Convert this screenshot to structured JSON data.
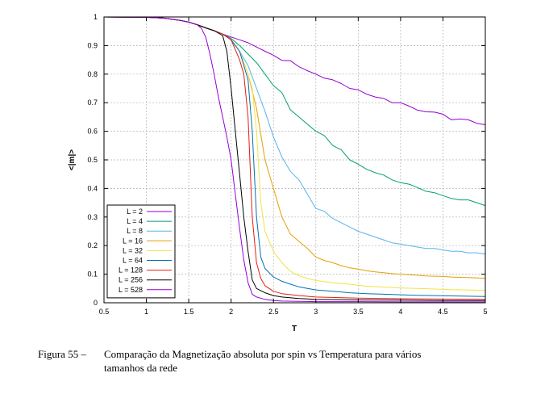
{
  "caption": {
    "number": "Figura 55 –",
    "line1": "Comparação da Magnetização absoluta por spin vs Temperatura para vários",
    "line2": "tamanhos da rede"
  },
  "chart_data": {
    "type": "line",
    "xlabel": "T",
    "ylabel": "<|m|>",
    "xlim": [
      0.5,
      5
    ],
    "ylim": [
      0,
      1
    ],
    "xticks": [
      "0.5",
      "1",
      "1.5",
      "2",
      "2.5",
      "3",
      "3.5",
      "4",
      "4.5",
      "5"
    ],
    "yticks": [
      "0",
      "0.1",
      "0.2",
      "0.3",
      "0.4",
      "0.5",
      "0.6",
      "0.7",
      "0.8",
      "0.9",
      "1"
    ],
    "grid": true,
    "legend_position": "bottom-left",
    "series": [
      {
        "name": "L = 2",
        "color": "#9400d3",
        "x": [
          0.5,
          1.0,
          1.2,
          1.4,
          1.5,
          1.6,
          1.7,
          1.8,
          1.9,
          2.0,
          2.1,
          2.2,
          2.3,
          2.4,
          2.5,
          2.6,
          2.7,
          2.8,
          2.9,
          3.0,
          3.1,
          3.2,
          3.3,
          3.4,
          3.5,
          3.6,
          3.7,
          3.8,
          3.9,
          4.0,
          4.1,
          4.2,
          4.3,
          4.4,
          4.5,
          4.6,
          4.7,
          4.8,
          4.9,
          5.0
        ],
        "y": [
          1.0,
          0.999,
          0.996,
          0.988,
          0.982,
          0.973,
          0.962,
          0.952,
          0.94,
          0.93,
          0.92,
          0.91,
          0.895,
          0.88,
          0.866,
          0.848,
          0.847,
          0.826,
          0.812,
          0.8,
          0.786,
          0.78,
          0.767,
          0.75,
          0.745,
          0.73,
          0.72,
          0.715,
          0.7,
          0.7,
          0.688,
          0.674,
          0.668,
          0.667,
          0.66,
          0.64,
          0.643,
          0.64,
          0.628,
          0.623
        ]
      },
      {
        "name": "L = 4",
        "color": "#009e73",
        "x": [
          0.5,
          1.0,
          1.2,
          1.4,
          1.5,
          1.6,
          1.7,
          1.8,
          1.9,
          2.0,
          2.1,
          2.2,
          2.3,
          2.4,
          2.5,
          2.6,
          2.7,
          2.8,
          2.9,
          3.0,
          3.1,
          3.2,
          3.3,
          3.4,
          3.5,
          3.6,
          3.7,
          3.8,
          3.9,
          4.0,
          4.1,
          4.2,
          4.3,
          4.4,
          4.5,
          4.6,
          4.7,
          4.8,
          4.9,
          5.0
        ],
        "y": [
          1.0,
          0.999,
          0.996,
          0.988,
          0.982,
          0.973,
          0.962,
          0.952,
          0.94,
          0.925,
          0.9,
          0.87,
          0.84,
          0.8,
          0.76,
          0.735,
          0.675,
          0.65,
          0.625,
          0.6,
          0.585,
          0.55,
          0.535,
          0.5,
          0.485,
          0.467,
          0.455,
          0.447,
          0.43,
          0.42,
          0.415,
          0.403,
          0.39,
          0.385,
          0.375,
          0.365,
          0.36,
          0.36,
          0.35,
          0.34
        ]
      },
      {
        "name": "L = 8",
        "color": "#56b4e9",
        "x": [
          0.5,
          1.0,
          1.2,
          1.4,
          1.5,
          1.6,
          1.7,
          1.8,
          1.9,
          2.0,
          2.1,
          2.2,
          2.3,
          2.4,
          2.5,
          2.6,
          2.7,
          2.8,
          2.9,
          3.0,
          3.1,
          3.2,
          3.3,
          3.4,
          3.5,
          3.6,
          3.7,
          3.8,
          3.9,
          4.0,
          4.1,
          4.2,
          4.3,
          4.4,
          4.5,
          4.6,
          4.7,
          4.8,
          4.9,
          5.0
        ],
        "y": [
          1.0,
          0.999,
          0.996,
          0.988,
          0.982,
          0.973,
          0.962,
          0.952,
          0.94,
          0.92,
          0.88,
          0.83,
          0.75,
          0.67,
          0.58,
          0.51,
          0.46,
          0.43,
          0.38,
          0.33,
          0.32,
          0.295,
          0.28,
          0.265,
          0.25,
          0.24,
          0.23,
          0.22,
          0.21,
          0.205,
          0.2,
          0.195,
          0.19,
          0.19,
          0.185,
          0.18,
          0.18,
          0.175,
          0.175,
          0.17
        ]
      },
      {
        "name": "L = 16",
        "color": "#e69f00",
        "x": [
          0.5,
          1.0,
          1.2,
          1.4,
          1.5,
          1.6,
          1.7,
          1.8,
          1.9,
          2.0,
          2.1,
          2.2,
          2.3,
          2.4,
          2.5,
          2.6,
          2.7,
          2.8,
          2.9,
          3.0,
          3.1,
          3.2,
          3.3,
          3.4,
          3.5,
          3.6,
          3.7,
          3.8,
          3.9,
          4.0,
          4.1,
          4.2,
          4.3,
          4.4,
          4.5,
          4.6,
          4.7,
          4.8,
          4.9,
          5.0
        ],
        "y": [
          1.0,
          0.999,
          0.996,
          0.988,
          0.982,
          0.973,
          0.962,
          0.952,
          0.94,
          0.92,
          0.88,
          0.8,
          0.68,
          0.5,
          0.4,
          0.3,
          0.24,
          0.215,
          0.19,
          0.16,
          0.148,
          0.14,
          0.13,
          0.122,
          0.118,
          0.112,
          0.108,
          0.105,
          0.102,
          0.1,
          0.098,
          0.096,
          0.094,
          0.093,
          0.092,
          0.09,
          0.089,
          0.088,
          0.087,
          0.086
        ]
      },
      {
        "name": "L = 32",
        "color": "#f0e442",
        "x": [
          0.5,
          1.0,
          1.2,
          1.4,
          1.5,
          1.6,
          1.7,
          1.8,
          1.9,
          2.0,
          2.1,
          2.2,
          2.25,
          2.3,
          2.35,
          2.4,
          2.5,
          2.6,
          2.7,
          2.8,
          2.9,
          3.0,
          3.2,
          3.4,
          3.6,
          3.8,
          4.0,
          4.2,
          4.4,
          4.6,
          4.8,
          5.0
        ],
        "y": [
          1.0,
          0.999,
          0.996,
          0.988,
          0.982,
          0.973,
          0.962,
          0.952,
          0.94,
          0.92,
          0.88,
          0.8,
          0.75,
          0.6,
          0.35,
          0.25,
          0.18,
          0.14,
          0.11,
          0.095,
          0.085,
          0.078,
          0.07,
          0.065,
          0.058,
          0.055,
          0.052,
          0.05,
          0.048,
          0.046,
          0.045,
          0.043
        ]
      },
      {
        "name": "L = 64",
        "color": "#0072b2",
        "x": [
          0.5,
          1.0,
          1.2,
          1.4,
          1.5,
          1.6,
          1.7,
          1.8,
          1.9,
          2.0,
          2.1,
          2.2,
          2.25,
          2.3,
          2.35,
          2.4,
          2.5,
          2.6,
          2.7,
          2.8,
          2.9,
          3.0,
          3.2,
          3.4,
          3.6,
          3.8,
          4.0,
          4.2,
          4.4,
          4.6,
          4.8,
          5.0
        ],
        "y": [
          1.0,
          0.999,
          0.996,
          0.988,
          0.982,
          0.973,
          0.962,
          0.952,
          0.94,
          0.92,
          0.88,
          0.78,
          0.6,
          0.3,
          0.16,
          0.12,
          0.09,
          0.075,
          0.065,
          0.056,
          0.05,
          0.045,
          0.04,
          0.035,
          0.032,
          0.03,
          0.028,
          0.026,
          0.025,
          0.024,
          0.023,
          0.022
        ]
      },
      {
        "name": "L = 128",
        "color": "#e51e10",
        "x": [
          0.5,
          1.0,
          1.2,
          1.4,
          1.5,
          1.6,
          1.7,
          1.8,
          1.9,
          2.0,
          2.1,
          2.15,
          2.2,
          2.25,
          2.3,
          2.35,
          2.4,
          2.5,
          2.6,
          2.8,
          3.0,
          3.5,
          4.0,
          4.5,
          5.0
        ],
        "y": [
          1.0,
          0.999,
          0.996,
          0.988,
          0.982,
          0.973,
          0.962,
          0.952,
          0.94,
          0.92,
          0.85,
          0.8,
          0.65,
          0.3,
          0.14,
          0.085,
          0.06,
          0.04,
          0.032,
          0.025,
          0.02,
          0.016,
          0.014,
          0.013,
          0.012
        ]
      },
      {
        "name": "L = 256",
        "color": "#000000",
        "x": [
          0.5,
          1.0,
          1.2,
          1.4,
          1.5,
          1.6,
          1.7,
          1.8,
          1.9,
          1.95,
          2.0,
          2.05,
          2.1,
          2.15,
          2.2,
          2.25,
          2.3,
          2.4,
          2.5,
          2.6,
          2.8,
          3.0,
          3.5,
          4.0,
          4.5,
          5.0
        ],
        "y": [
          1.0,
          0.999,
          0.996,
          0.988,
          0.982,
          0.973,
          0.962,
          0.952,
          0.935,
          0.88,
          0.75,
          0.6,
          0.45,
          0.3,
          0.18,
          0.08,
          0.05,
          0.035,
          0.025,
          0.02,
          0.015,
          0.012,
          0.01,
          0.009,
          0.008,
          0.008
        ]
      },
      {
        "name": "L = 528",
        "color": "#9400d3",
        "x": [
          0.5,
          1.0,
          1.2,
          1.4,
          1.5,
          1.6,
          1.65,
          1.7,
          1.75,
          1.8,
          1.85,
          1.9,
          1.95,
          2.0,
          2.05,
          2.1,
          2.15,
          2.2,
          2.25,
          2.3,
          2.4,
          2.5,
          2.6,
          2.8,
          3.0,
          3.5,
          4.0,
          4.5,
          5.0
        ],
        "y": [
          1.0,
          0.999,
          0.996,
          0.988,
          0.982,
          0.973,
          0.96,
          0.93,
          0.87,
          0.8,
          0.72,
          0.65,
          0.58,
          0.5,
          0.38,
          0.26,
          0.15,
          0.07,
          0.03,
          0.02,
          0.012,
          0.008,
          0.006,
          0.005,
          0.004,
          0.004,
          0.003,
          0.003,
          0.003
        ]
      }
    ]
  }
}
